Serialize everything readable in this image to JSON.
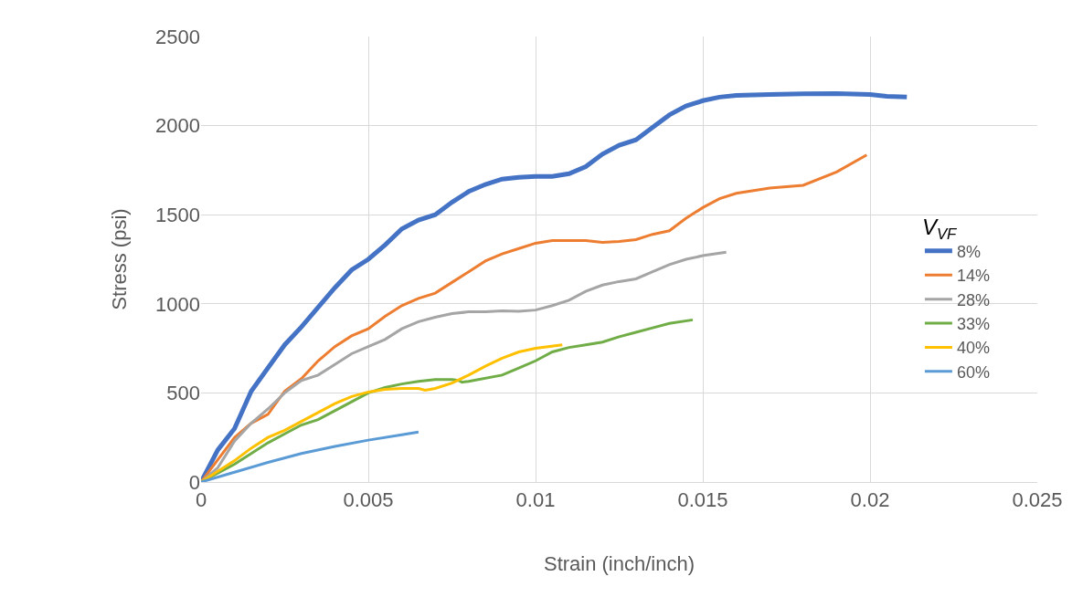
{
  "chart_data": {
    "type": "line",
    "xlabel": "Strain (inch/inch)",
    "ylabel": "Stress (psi)",
    "legend_title": "V$_{VF}$",
    "xlim": [
      0,
      0.025
    ],
    "xticks": [
      0,
      0.005,
      0.01,
      0.015,
      0.02,
      0.025
    ],
    "ylim": [
      0,
      2500
    ],
    "yticks": [
      0,
      500,
      1000,
      1500,
      2000,
      2500
    ],
    "grid": true,
    "legend": "right",
    "marker": "none",
    "line_style": "solid",
    "series": [
      {
        "name": "8%",
        "color": "#4472c4",
        "x": [
          0,
          0.0005,
          0.001,
          0.0015,
          0.002,
          0.0025,
          0.003,
          0.0035,
          0.004,
          0.0045,
          0.005,
          0.0055,
          0.006,
          0.0065,
          0.007,
          0.0075,
          0.008,
          0.0085,
          0.009,
          0.0095,
          0.01,
          0.0105,
          0.011,
          0.0115,
          0.012,
          0.0125,
          0.013,
          0.0135,
          0.014,
          0.0145,
          0.015,
          0.0155,
          0.016,
          0.017,
          0.018,
          0.019,
          0.02,
          0.0205,
          0.0211
        ],
        "values": [
          0,
          180,
          300,
          510,
          640,
          770,
          870,
          980,
          1090,
          1190,
          1250,
          1330,
          1420,
          1470,
          1500,
          1570,
          1630,
          1670,
          1700,
          1710,
          1715,
          1715,
          1730,
          1770,
          1840,
          1890,
          1920,
          1990,
          2060,
          2110,
          2140,
          2160,
          2170,
          2175,
          2178,
          2180,
          2175,
          2165,
          2160
        ]
      },
      {
        "name": "14%",
        "color": "#ed7d31",
        "x": [
          0,
          0.001,
          0.0015,
          0.002,
          0.0025,
          0.003,
          0.0035,
          0.004,
          0.0045,
          0.005,
          0.0055,
          0.006,
          0.0065,
          0.007,
          0.0075,
          0.008,
          0.0085,
          0.009,
          0.0095,
          0.01,
          0.0105,
          0.011,
          0.0115,
          0.012,
          0.0125,
          0.013,
          0.0135,
          0.014,
          0.0145,
          0.015,
          0.0155,
          0.016,
          0.017,
          0.018,
          0.019,
          0.0199
        ],
        "values": [
          0,
          250,
          330,
          380,
          510,
          580,
          680,
          760,
          820,
          860,
          930,
          990,
          1030,
          1060,
          1120,
          1180,
          1240,
          1280,
          1310,
          1340,
          1355,
          1355,
          1355,
          1345,
          1350,
          1360,
          1390,
          1410,
          1480,
          1540,
          1590,
          1620,
          1650,
          1665,
          1740,
          1835
        ]
      },
      {
        "name": "28%",
        "color": "#a5a5a5",
        "x": [
          0,
          0.0005,
          0.001,
          0.0015,
          0.002,
          0.0025,
          0.003,
          0.0035,
          0.004,
          0.0045,
          0.005,
          0.0055,
          0.006,
          0.0065,
          0.007,
          0.0075,
          0.008,
          0.0085,
          0.009,
          0.0095,
          0.01,
          0.0105,
          0.011,
          0.0115,
          0.012,
          0.0125,
          0.013,
          0.0135,
          0.014,
          0.0145,
          0.015,
          0.0157
        ],
        "values": [
          0,
          80,
          230,
          330,
          410,
          500,
          570,
          600,
          660,
          720,
          760,
          800,
          860,
          900,
          925,
          945,
          955,
          955,
          960,
          958,
          965,
          990,
          1020,
          1070,
          1105,
          1125,
          1140,
          1180,
          1220,
          1250,
          1270,
          1290
        ]
      },
      {
        "name": "33%",
        "color": "#70ad47",
        "x": [
          0,
          0.001,
          0.0015,
          0.002,
          0.0025,
          0.003,
          0.0035,
          0.004,
          0.0045,
          0.005,
          0.0055,
          0.006,
          0.0065,
          0.007,
          0.0075,
          0.0077,
          0.0078,
          0.008,
          0.009,
          0.0095,
          0.01,
          0.0105,
          0.011,
          0.0115,
          0.012,
          0.0125,
          0.013,
          0.0135,
          0.014,
          0.0147
        ],
        "values": [
          0,
          100,
          160,
          220,
          270,
          320,
          350,
          400,
          450,
          500,
          530,
          550,
          565,
          575,
          575,
          570,
          560,
          565,
          600,
          640,
          680,
          730,
          755,
          770,
          785,
          815,
          840,
          865,
          890,
          910
        ]
      },
      {
        "name": "40%",
        "color": "#ffc000",
        "x": [
          0,
          0.0005,
          0.001,
          0.0015,
          0.002,
          0.0025,
          0.003,
          0.0035,
          0.004,
          0.0045,
          0.005,
          0.0055,
          0.006,
          0.0065,
          0.0067,
          0.007,
          0.0075,
          0.008,
          0.0085,
          0.009,
          0.0095,
          0.01,
          0.0108
        ],
        "values": [
          0,
          60,
          120,
          190,
          250,
          290,
          340,
          390,
          440,
          480,
          505,
          520,
          525,
          525,
          515,
          525,
          555,
          600,
          650,
          695,
          730,
          750,
          770
        ]
      },
      {
        "name": "60%",
        "color": "#5b9bd5",
        "x": [
          0,
          0.001,
          0.002,
          0.003,
          0.004,
          0.005,
          0.006,
          0.0065
        ],
        "values": [
          0,
          55,
          110,
          160,
          200,
          235,
          265,
          280
        ]
      }
    ]
  }
}
